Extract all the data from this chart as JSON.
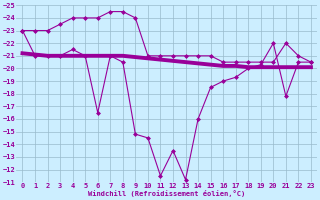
{
  "xlabel": "Windchill (Refroidissement éolien,°C)",
  "hours": [
    0,
    1,
    2,
    3,
    4,
    5,
    6,
    7,
    8,
    9,
    10,
    11,
    12,
    13,
    14,
    15,
    16,
    17,
    18,
    19,
    20,
    21,
    22,
    23
  ],
  "line_upper": [
    -23.0,
    -21.0,
    -21.0,
    -21.0,
    -21.5,
    -21.0,
    -16.5,
    -21.0,
    -20.5,
    -14.8,
    -14.5,
    -11.5,
    -13.5,
    -11.2,
    -16.0,
    -18.5,
    -19.0,
    -19.3,
    -20.0,
    -20.3,
    -22.0,
    -17.8,
    -20.5,
    -20.5
  ],
  "line_lower": [
    -23.0,
    -23.0,
    -23.0,
    -23.5,
    -24.0,
    -24.0,
    -24.0,
    -24.5,
    -24.5,
    -24.0,
    -21.0,
    -21.0,
    -21.0,
    -21.0,
    -21.0,
    -21.0,
    -20.5,
    -20.5,
    -20.5,
    -20.5,
    -20.5,
    -22.0,
    -21.0,
    -20.5
  ],
  "line_trend": [
    -21.2,
    -21.1,
    -21.0,
    -21.0,
    -21.0,
    -21.0,
    -21.0,
    -21.0,
    -21.0,
    -20.9,
    -20.8,
    -20.7,
    -20.6,
    -20.5,
    -20.4,
    -20.3,
    -20.2,
    -20.2,
    -20.1,
    -20.1,
    -20.1,
    -20.1,
    -20.1,
    -20.1
  ],
  "line_color": "#990099",
  "bg_color": "#cceeff",
  "grid_color": "#99bbcc",
  "ylim_min": -25,
  "ylim_max": -11,
  "yticks": [
    -25,
    -24,
    -23,
    -22,
    -21,
    -20,
    -19,
    -18,
    -17,
    -16,
    -15,
    -14,
    -13,
    -12,
    -11
  ],
  "xticks": [
    0,
    1,
    2,
    3,
    4,
    5,
    6,
    7,
    8,
    9,
    10,
    11,
    12,
    13,
    14,
    15,
    16,
    17,
    18,
    19,
    20,
    21,
    22,
    23
  ]
}
